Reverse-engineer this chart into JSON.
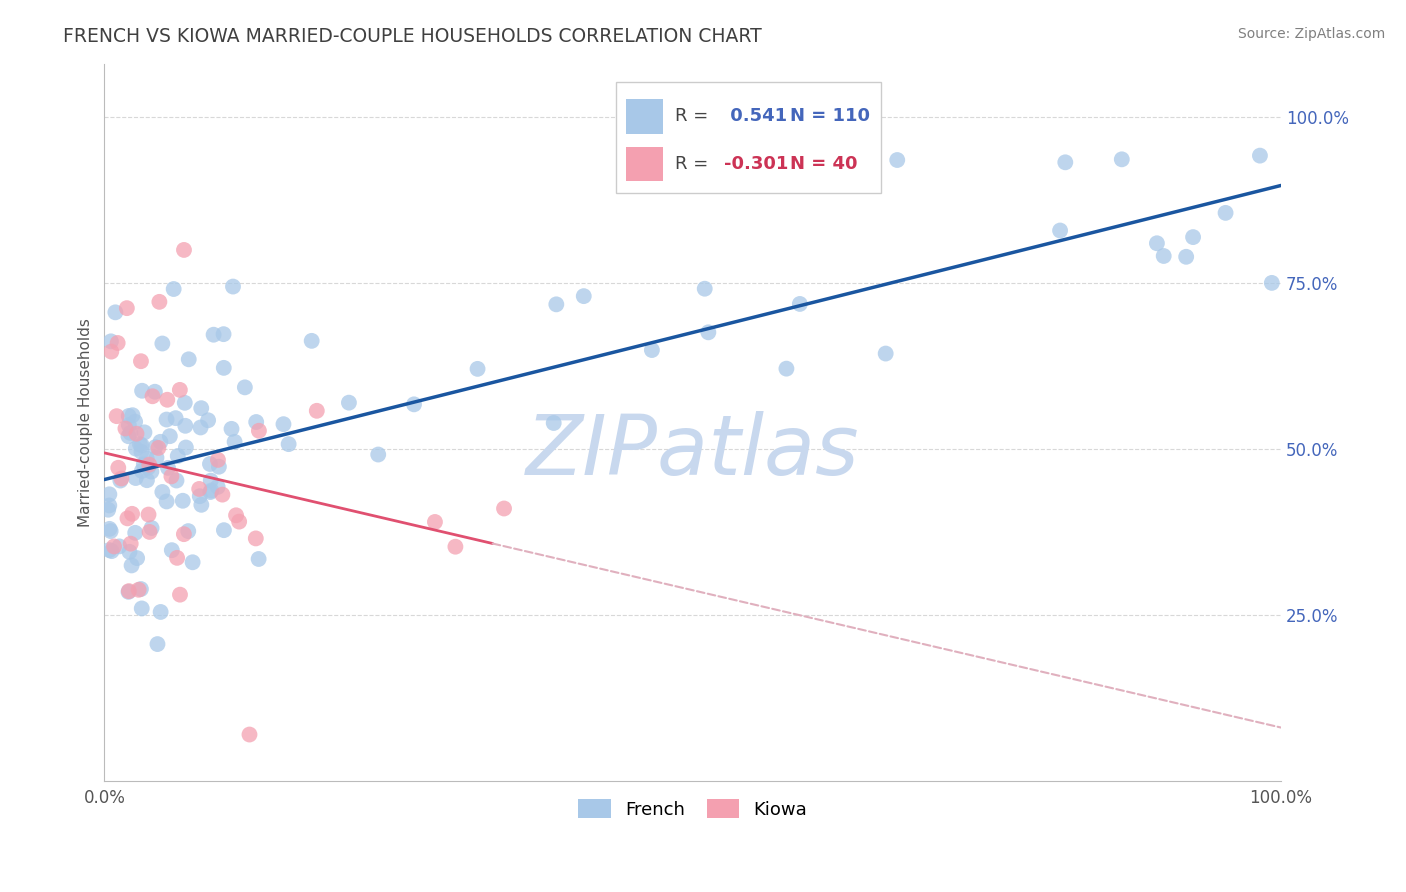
{
  "title": "FRENCH VS KIOWA MARRIED-COUPLE HOUSEHOLDS CORRELATION CHART",
  "source": "Source: ZipAtlas.com",
  "ylabel": "Married-couple Households",
  "french_R": 0.541,
  "french_N": 110,
  "kiowa_R": -0.301,
  "kiowa_N": 40,
  "french_color": "#a8c8e8",
  "french_line_color": "#1a56a0",
  "kiowa_color": "#f4a0b0",
  "kiowa_line_color": "#e05070",
  "kiowa_dash_color": "#e0b0be",
  "ytick_color": "#4466bb",
  "watermark_color": "#c8d8ee",
  "grid_color": "#d8d8d8",
  "title_color": "#404040",
  "source_color": "#808080"
}
